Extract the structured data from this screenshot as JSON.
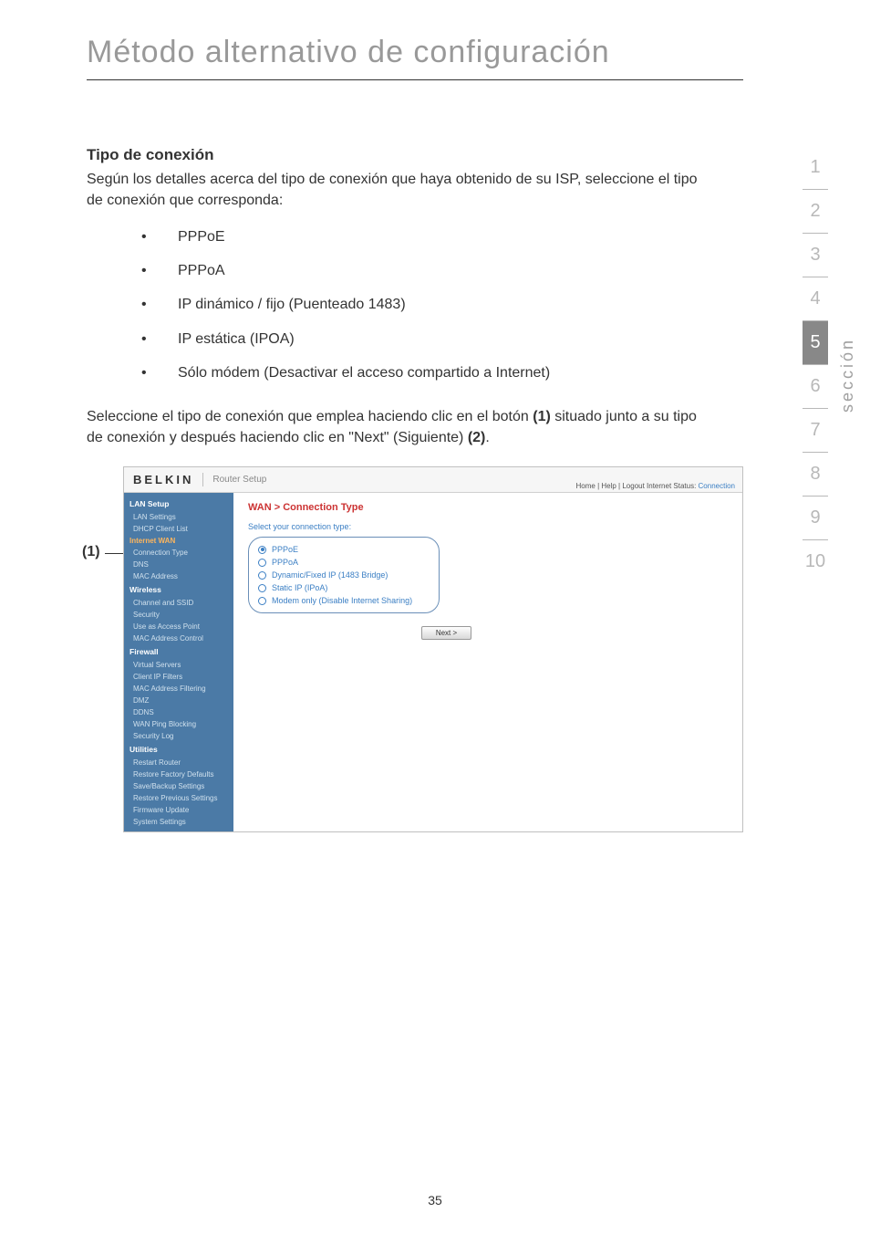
{
  "page": {
    "title": "Método alternativo de configuración",
    "number": "35",
    "sideLabel": "sección"
  },
  "sideTabs": [
    "1",
    "2",
    "3",
    "4",
    "5",
    "6",
    "7",
    "8",
    "9",
    "10"
  ],
  "activeTab": "5",
  "section": {
    "heading": "Tipo de conexión",
    "intro": "Según los detalles acerca del tipo de conexión que haya obtenido de su ISP, seleccione el tipo de conexión que corresponda:",
    "bullets": [
      "PPPoE",
      "PPPoA",
      "IP dinámico / fijo (Puenteado 1483)",
      "IP estática (IPOA)",
      "Sólo módem (Desactivar el acceso compartido a Internet)"
    ],
    "para2_pre": "Seleccione el tipo de conexión que emplea haciendo clic en el botón ",
    "para2_b1": "(1)",
    "para2_mid": " situado junto a su tipo de conexión y después haciendo clic en \"Next\" (Siguiente) ",
    "para2_b2": "(2)",
    "para2_post": "."
  },
  "screenshot": {
    "label": "(1)",
    "brand": "BELKIN",
    "headerTitle": "Router Setup",
    "statusPrefix": "Home | Help | Logout   Internet Status: ",
    "statusValue": "Connection",
    "wanTitle": "WAN > Connection Type",
    "selectLabel": "Select your connection type:",
    "options": [
      {
        "label": "PPPoE",
        "selected": true
      },
      {
        "label": "PPPoA",
        "selected": false
      },
      {
        "label": "Dynamic/Fixed IP (1483 Bridge)",
        "selected": false
      },
      {
        "label": "Static IP (IPoA)",
        "selected": false
      },
      {
        "label": "Modem only (Disable Internet Sharing)",
        "selected": false
      }
    ],
    "nextBtn": "Next >",
    "sidebar": [
      {
        "type": "group",
        "label": "LAN Setup"
      },
      {
        "type": "item",
        "label": "LAN Settings"
      },
      {
        "type": "item",
        "label": "DHCP Client List"
      },
      {
        "type": "iwan",
        "label": "Internet WAN"
      },
      {
        "type": "item",
        "label": "Connection Type"
      },
      {
        "type": "item",
        "label": "DNS"
      },
      {
        "type": "item",
        "label": "MAC Address"
      },
      {
        "type": "group",
        "label": "Wireless"
      },
      {
        "type": "item",
        "label": "Channel and SSID"
      },
      {
        "type": "item",
        "label": "Security"
      },
      {
        "type": "item",
        "label": "Use as Access Point"
      },
      {
        "type": "item",
        "label": "MAC Address Control"
      },
      {
        "type": "group",
        "label": "Firewall"
      },
      {
        "type": "item",
        "label": "Virtual Servers"
      },
      {
        "type": "item",
        "label": "Client IP Filters"
      },
      {
        "type": "item",
        "label": "MAC Address Filtering"
      },
      {
        "type": "item",
        "label": "DMZ"
      },
      {
        "type": "item",
        "label": "DDNS"
      },
      {
        "type": "item",
        "label": "WAN Ping Blocking"
      },
      {
        "type": "item",
        "label": "Security Log"
      },
      {
        "type": "group",
        "label": "Utilities"
      },
      {
        "type": "item",
        "label": "Restart Router"
      },
      {
        "type": "item",
        "label": "Restore Factory Defaults"
      },
      {
        "type": "item",
        "label": "Save/Backup Settings"
      },
      {
        "type": "item",
        "label": "Restore Previous Settings"
      },
      {
        "type": "item",
        "label": "Firmware Update"
      },
      {
        "type": "item",
        "label": "System Settings"
      }
    ]
  }
}
